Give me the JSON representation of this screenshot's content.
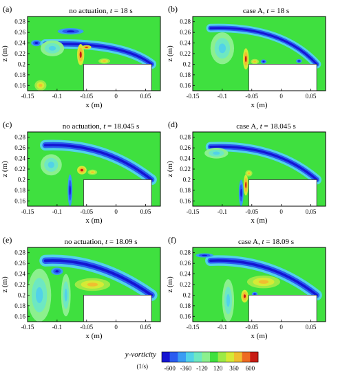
{
  "chart_data": {
    "type": "heatmap",
    "colorbar": {
      "label_main": "y-vorticity",
      "label_unit": "(1/s)",
      "tick_labels": [
        "-600",
        "-360",
        "-120",
        "120",
        "360",
        "600"
      ],
      "colors": [
        "#1414d2",
        "#2a5cf0",
        "#3a9cf4",
        "#52d2e8",
        "#6ee8c2",
        "#8cf08e",
        "#3fe03f",
        "#9cea46",
        "#d6ea36",
        "#f0be30",
        "#ee6a22",
        "#c81c14"
      ]
    },
    "panels": [
      {
        "letter": "(a)",
        "title_pre": "no actuation, ",
        "title_var": "t",
        "title_post": " = 18 s",
        "xlabel": "x (m)",
        "ylabel": "z (m)",
        "xticks": [
          "-0.15",
          "-0.1",
          "-0.05",
          "0",
          "0.05"
        ],
        "yticks": [
          "0.16",
          "0.18",
          "0.2",
          "0.22",
          "0.24",
          "0.26",
          "0.28"
        ],
        "xlim": [
          -0.15,
          0.075
        ],
        "ylim": [
          0.15,
          0.29
        ],
        "block": {
          "x": [
            -0.055,
            0.06
          ],
          "z": [
            0.15,
            0.2
          ]
        },
        "structures": [
          {
            "kind": "blue",
            "x": -0.077,
            "z": 0.262,
            "rx": 0.022,
            "rz": 0.006
          },
          {
            "kind": "blue",
            "x": -0.135,
            "z": 0.24,
            "rx": 0.009,
            "rz": 0.006
          },
          {
            "kind": "shear",
            "x": 0.01,
            "z": 0.228,
            "thick": 0.009
          },
          {
            "kind": "red",
            "x": -0.06,
            "z": 0.218,
            "rx": 0.006,
            "rz": 0.02
          },
          {
            "kind": "red",
            "x": -0.05,
            "z": 0.232,
            "rx": 0.008,
            "rz": 0.004
          },
          {
            "kind": "yellow",
            "x": -0.02,
            "z": 0.206,
            "rx": 0.01,
            "rz": 0.005
          },
          {
            "kind": "yellow",
            "x": -0.128,
            "z": 0.16,
            "rx": 0.01,
            "rz": 0.01
          },
          {
            "kind": "cyan",
            "x": -0.108,
            "z": 0.23,
            "rx": 0.02,
            "rz": 0.015
          }
        ]
      },
      {
        "letter": "(b)",
        "title_pre": "case A, ",
        "title_var": "t",
        "title_post": " = 18 s",
        "xlabel": "x (m)",
        "ylabel": "z (m)",
        "xticks": [
          "-0.15",
          "-0.1",
          "-0.05",
          "0",
          "0.05"
        ],
        "yticks": [
          "0.16",
          "0.18",
          "0.2",
          "0.22",
          "0.24",
          "0.26",
          "0.28"
        ],
        "xlim": [
          -0.15,
          0.075
        ],
        "ylim": [
          0.15,
          0.29
        ],
        "block": {
          "x": [
            -0.055,
            0.06
          ],
          "z": [
            0.15,
            0.2
          ]
        },
        "structures": [
          {
            "kind": "shear",
            "x": 0.0,
            "z": 0.258,
            "thick": 0.008
          },
          {
            "kind": "red",
            "x": -0.06,
            "z": 0.21,
            "rx": 0.005,
            "rz": 0.02
          },
          {
            "kind": "yellow",
            "x": -0.045,
            "z": 0.205,
            "rx": 0.007,
            "rz": 0.005
          },
          {
            "kind": "blue",
            "x": -0.03,
            "z": 0.205,
            "rx": 0.005,
            "rz": 0.004
          },
          {
            "kind": "blue",
            "x": 0.03,
            "z": 0.206,
            "rx": 0.005,
            "rz": 0.004
          },
          {
            "kind": "cyan",
            "x": -0.1,
            "z": 0.23,
            "rx": 0.02,
            "rz": 0.03
          }
        ]
      },
      {
        "letter": "(c)",
        "title_pre": "no actuation, ",
        "title_var": "t",
        "title_post": " = 18.045 s",
        "xlabel": "x (m)",
        "ylabel": "z (m)",
        "xticks": [
          "-0.15",
          "-0.1",
          "-0.05",
          "0",
          "0.05"
        ],
        "yticks": [
          "0.16",
          "0.18",
          "0.2",
          "0.22",
          "0.24",
          "0.26",
          "0.28"
        ],
        "xlim": [
          -0.15,
          0.075
        ],
        "ylim": [
          0.15,
          0.29
        ],
        "block": {
          "x": [
            -0.055,
            0.06
          ],
          "z": [
            0.15,
            0.2
          ]
        },
        "structures": [
          {
            "kind": "shear",
            "x": -0.02,
            "z": 0.255,
            "thick": 0.01
          },
          {
            "kind": "red",
            "x": -0.058,
            "z": 0.218,
            "rx": 0.008,
            "rz": 0.008
          },
          {
            "kind": "yellow",
            "x": -0.04,
            "z": 0.214,
            "rx": 0.008,
            "rz": 0.005
          },
          {
            "kind": "blue",
            "x": -0.078,
            "z": 0.18,
            "rx": 0.004,
            "rz": 0.03
          },
          {
            "kind": "cyan",
            "x": -0.11,
            "z": 0.228,
            "rx": 0.018,
            "rz": 0.02
          }
        ]
      },
      {
        "letter": "(d)",
        "title_pre": "case A, ",
        "title_var": "t",
        "title_post": " = 18.045 s",
        "xlabel": "x (m)",
        "ylabel": "z (m)",
        "xticks": [
          "-0.15",
          "-0.1",
          "-0.05",
          "0",
          "0.05"
        ],
        "yticks": [
          "0.16",
          "0.18",
          "0.2",
          "0.22",
          "0.24",
          "0.26",
          "0.28"
        ],
        "xlim": [
          -0.15,
          0.075
        ],
        "ylim": [
          0.15,
          0.29
        ],
        "block": {
          "x": [
            -0.055,
            0.06
          ],
          "z": [
            0.15,
            0.2
          ]
        },
        "structures": [
          {
            "kind": "shear",
            "x": -0.01,
            "z": 0.252,
            "thick": 0.009
          },
          {
            "kind": "red",
            "x": -0.06,
            "z": 0.19,
            "rx": 0.004,
            "rz": 0.02
          },
          {
            "kind": "yellow",
            "x": -0.055,
            "z": 0.212,
            "rx": 0.006,
            "rz": 0.006
          },
          {
            "kind": "blue",
            "x": -0.068,
            "z": 0.175,
            "rx": 0.004,
            "rz": 0.025
          },
          {
            "kind": "cyan",
            "x": -0.11,
            "z": 0.25,
            "rx": 0.02,
            "rz": 0.01
          }
        ]
      },
      {
        "letter": "(e)",
        "title_pre": "no actuation, ",
        "title_var": "t",
        "title_post": " = 18.09 s",
        "xlabel": "x (m)",
        "ylabel": "z (m)",
        "xticks": [
          "-0.15",
          "-0.1",
          "-0.05",
          "0",
          "0.05"
        ],
        "yticks": [
          "0.16",
          "0.18",
          "0.2",
          "0.22",
          "0.24",
          "0.26",
          "0.28"
        ],
        "xlim": [
          -0.15,
          0.075
        ],
        "ylim": [
          0.15,
          0.29
        ],
        "block": {
          "x": [
            -0.055,
            0.06
          ],
          "z": [
            0.15,
            0.2
          ]
        },
        "structures": [
          {
            "kind": "shear",
            "x": -0.03,
            "z": 0.255,
            "thick": 0.011
          },
          {
            "kind": "yellow",
            "x": -0.04,
            "z": 0.22,
            "rx": 0.03,
            "rz": 0.012
          },
          {
            "kind": "blue",
            "x": -0.1,
            "z": 0.245,
            "rx": 0.01,
            "rz": 0.007
          },
          {
            "kind": "cyan",
            "x": -0.085,
            "z": 0.2,
            "rx": 0.008,
            "rz": 0.04
          },
          {
            "kind": "cyan",
            "x": -0.13,
            "z": 0.2,
            "rx": 0.02,
            "rz": 0.05
          }
        ]
      },
      {
        "letter": "(f)",
        "title_pre": "case A, ",
        "title_var": "t",
        "title_post": " = 18.09 s",
        "xlabel": "x (m)",
        "ylabel": "z (m)",
        "xticks": [
          "-0.15",
          "-0.1",
          "-0.05",
          "0",
          "0.05"
        ],
        "yticks": [
          "0.16",
          "0.18",
          "0.2",
          "0.22",
          "0.24",
          "0.26",
          "0.28"
        ],
        "xlim": [
          -0.15,
          0.075
        ],
        "ylim": [
          0.15,
          0.29
        ],
        "block": {
          "x": [
            -0.055,
            0.06
          ],
          "z": [
            0.15,
            0.2
          ]
        },
        "structures": [
          {
            "kind": "shear",
            "x": -0.02,
            "z": 0.255,
            "thick": 0.01
          },
          {
            "kind": "red",
            "x": -0.062,
            "z": 0.198,
            "rx": 0.006,
            "rz": 0.012
          },
          {
            "kind": "yellow",
            "x": -0.03,
            "z": 0.225,
            "rx": 0.028,
            "rz": 0.012
          },
          {
            "kind": "blue",
            "x": -0.13,
            "z": 0.275,
            "rx": 0.015,
            "rz": 0.004
          },
          {
            "kind": "blue",
            "x": -0.045,
            "z": 0.202,
            "rx": 0.005,
            "rz": 0.004
          },
          {
            "kind": "cyan",
            "x": -0.09,
            "z": 0.19,
            "rx": 0.01,
            "rz": 0.04
          }
        ]
      }
    ]
  }
}
